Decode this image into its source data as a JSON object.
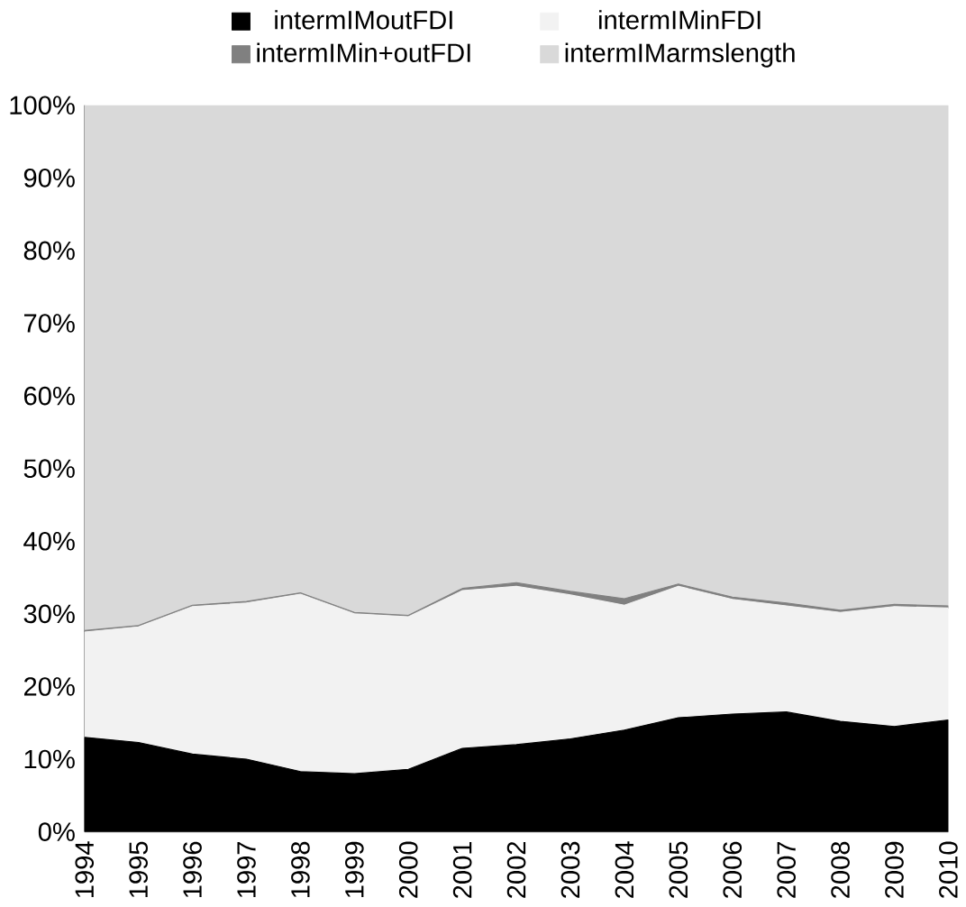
{
  "chart_data": {
    "type": "area",
    "stacked": true,
    "categories": [
      "1994",
      "1995",
      "1996",
      "1997",
      "1998",
      "1999",
      "2000",
      "2001",
      "2002",
      "2003",
      "2004",
      "2005",
      "2006",
      "2007",
      "2008",
      "2009",
      "2010"
    ],
    "series": [
      {
        "name": "intermIMoutFDI",
        "color": "#000000",
        "values": [
          13,
          12.3,
          10.7,
          10,
          8.3,
          8,
          8.6,
          11.5,
          12,
          12.8,
          14,
          15.7,
          16.2,
          16.5,
          15.2,
          14.5,
          15.4
        ]
      },
      {
        "name": "intermIMinFDI",
        "color": "#f2f2f2",
        "values": [
          14.5,
          15.9,
          20.3,
          21.5,
          24.4,
          22,
          21,
          21.7,
          21.8,
          19.8,
          17.2,
          18.1,
          15.8,
          14.6,
          15,
          16.5,
          15.4
        ]
      },
      {
        "name": "intermIMin+outFDI",
        "color": "#808080",
        "values": [
          0.2,
          0.2,
          0.2,
          0.2,
          0.2,
          0.2,
          0.2,
          0.3,
          0.5,
          0.5,
          0.9,
          0.3,
          0.3,
          0.4,
          0.3,
          0.3,
          0.3
        ]
      },
      {
        "name": "intermIMarmslength",
        "color": "#d9d9d9",
        "values": [
          72.3,
          71.6,
          68.8,
          68.3,
          67.1,
          69.8,
          70.2,
          66.5,
          65.7,
          66.9,
          67.9,
          65.9,
          67.7,
          68.5,
          69.5,
          68.7,
          68.9
        ]
      }
    ],
    "ylim": [
      0,
      100
    ],
    "yticks": [
      {
        "value": 0,
        "label": "0%"
      },
      {
        "value": 10,
        "label": "10%"
      },
      {
        "value": 20,
        "label": "20%"
      },
      {
        "value": 30,
        "label": "30%"
      },
      {
        "value": 40,
        "label": "40%"
      },
      {
        "value": 50,
        "label": "50%"
      },
      {
        "value": 60,
        "label": "60%"
      },
      {
        "value": 70,
        "label": "70%"
      },
      {
        "value": 80,
        "label": "80%"
      },
      {
        "value": 90,
        "label": "90%"
      },
      {
        "value": 100,
        "label": "100%"
      }
    ],
    "legend": "top"
  }
}
